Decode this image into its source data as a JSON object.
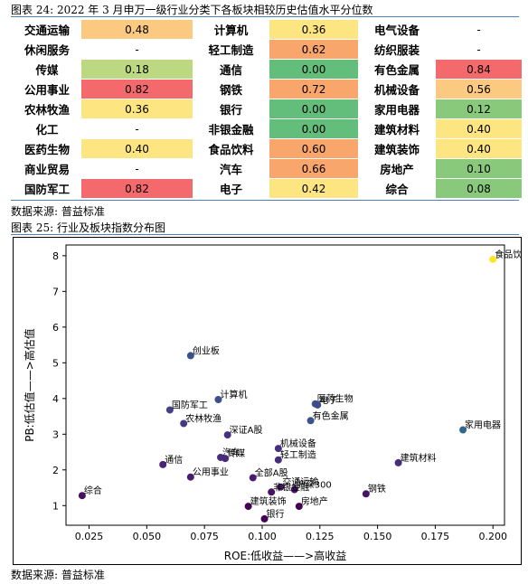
{
  "caption_top": "图表 24: 2022 年 3 月申万一级行业分类下各板块相较历史估值水平分位数",
  "source_top": "数据来源: 普益标准",
  "caption_bottom": "图表 25: 行业及板块指数分布图",
  "source_bottom": "数据来源: 普益标准",
  "colors": {
    "red": "#f4696b",
    "orange": "#f9a66c",
    "lightorange": "#fbc97f",
    "yellow": "#fde582",
    "lightgreen": "#bcd881",
    "green": "#89c97c",
    "darkgreen": "#63be7b",
    "rule": "#4d7fb8"
  },
  "valuation_table": {
    "rows": [
      [
        [
          "交通运输",
          "0.48",
          "lightorange"
        ],
        [
          "计算机",
          "0.36",
          "yellow"
        ],
        [
          "电气设备",
          "-",
          ""
        ]
      ],
      [
        [
          "休闲服务",
          "-",
          ""
        ],
        [
          "轻工制造",
          "0.62",
          "orange"
        ],
        [
          "纺织服装",
          "-",
          ""
        ]
      ],
      [
        [
          "传媒",
          "0.18",
          "lightgreen"
        ],
        [
          "通信",
          "0.00",
          "darkgreen"
        ],
        [
          "有色金属",
          "0.84",
          "red"
        ]
      ],
      [
        [
          "公用事业",
          "0.82",
          "red"
        ],
        [
          "钢铁",
          "0.72",
          "orange"
        ],
        [
          "机械设备",
          "0.56",
          "lightorange"
        ]
      ],
      [
        [
          "农林牧渔",
          "0.36",
          "yellow"
        ],
        [
          "银行",
          "0.00",
          "darkgreen"
        ],
        [
          "家用电器",
          "0.12",
          "green"
        ]
      ],
      [
        [
          "化工",
          "-",
          ""
        ],
        [
          "非银金融",
          "0.00",
          "darkgreen"
        ],
        [
          "建筑材料",
          "0.40",
          "yellow"
        ]
      ],
      [
        [
          "医药生物",
          "0.40",
          "yellow"
        ],
        [
          "食品饮料",
          "0.60",
          "orange"
        ],
        [
          "建筑装饰",
          "0.40",
          "yellow"
        ]
      ],
      [
        [
          "商业贸易",
          "-",
          ""
        ],
        [
          "汽车",
          "0.66",
          "orange"
        ],
        [
          "房地产",
          "0.10",
          "green"
        ]
      ],
      [
        [
          "国防军工",
          "0.82",
          "red"
        ],
        [
          "电子",
          "0.42",
          "yellow"
        ],
        [
          "综合",
          "0.08",
          "green"
        ]
      ]
    ]
  },
  "chart_data": {
    "type": "scatter",
    "xlabel": "ROE:低收益——>高收益",
    "ylabel": "PB:低估值——>高估值",
    "xlim": [
      0.015,
      0.205
    ],
    "ylim": [
      0.45,
      8.3
    ],
    "xticks": [
      "0.025",
      "0.050",
      "0.075",
      "0.100",
      "0.125",
      "0.150",
      "0.175",
      "0.200"
    ],
    "yticks": [
      "1",
      "2",
      "3",
      "4",
      "5",
      "6",
      "7",
      "8"
    ],
    "points": [
      {
        "label": "食品饮料",
        "x": 0.2,
        "y": 7.9,
        "color": "#fde725"
      },
      {
        "label": "创业板",
        "x": 0.069,
        "y": 5.2,
        "color": "#3a528b"
      },
      {
        "label": "计算机",
        "x": 0.081,
        "y": 3.97,
        "color": "#3b518b"
      },
      {
        "label": "医药生物",
        "x": 0.123,
        "y": 3.85,
        "color": "#3b528b"
      },
      {
        "label": "电子",
        "x": 0.124,
        "y": 3.82,
        "color": "#3e4a89"
      },
      {
        "label": "国防军工",
        "x": 0.06,
        "y": 3.68,
        "color": "#424086"
      },
      {
        "label": "有色金属",
        "x": 0.121,
        "y": 3.38,
        "color": "#3b528b"
      },
      {
        "label": "家用电器",
        "x": 0.187,
        "y": 3.12,
        "color": "#31688e"
      },
      {
        "label": "农林牧渔",
        "x": 0.066,
        "y": 3.3,
        "color": "#443a83"
      },
      {
        "label": "深证A股",
        "x": 0.085,
        "y": 2.98,
        "color": "#46327e"
      },
      {
        "label": "机械设备",
        "x": 0.107,
        "y": 2.6,
        "color": "#46307e"
      },
      {
        "label": "汽车",
        "x": 0.082,
        "y": 2.35,
        "color": "#472c7a"
      },
      {
        "label": "传媒",
        "x": 0.084,
        "y": 2.32,
        "color": "#472a7a"
      },
      {
        "label": "轻工制造",
        "x": 0.107,
        "y": 2.28,
        "color": "#472c7a"
      },
      {
        "label": "建筑材料",
        "x": 0.159,
        "y": 2.2,
        "color": "#472c7a"
      },
      {
        "label": "通信",
        "x": 0.057,
        "y": 2.15,
        "color": "#482475"
      },
      {
        "label": "公用事业",
        "x": 0.069,
        "y": 1.8,
        "color": "#481c6e"
      },
      {
        "label": "全部A股",
        "x": 0.096,
        "y": 1.78,
        "color": "#481c6e"
      },
      {
        "label": "交通运输",
        "x": 0.108,
        "y": 1.52,
        "color": "#481769"
      },
      {
        "label": "沪深300",
        "x": 0.114,
        "y": 1.45,
        "color": "#471365"
      },
      {
        "label": "非银金融",
        "x": 0.104,
        "y": 1.38,
        "color": "#471365"
      },
      {
        "label": "钢铁",
        "x": 0.145,
        "y": 1.33,
        "color": "#471365"
      },
      {
        "label": "综合",
        "x": 0.022,
        "y": 1.28,
        "color": "#471063"
      },
      {
        "label": "建筑装饰",
        "x": 0.094,
        "y": 0.98,
        "color": "#440154"
      },
      {
        "label": "房地产",
        "x": 0.116,
        "y": 0.98,
        "color": "#440154"
      },
      {
        "label": "银行",
        "x": 0.101,
        "y": 0.63,
        "color": "#440154"
      }
    ]
  }
}
